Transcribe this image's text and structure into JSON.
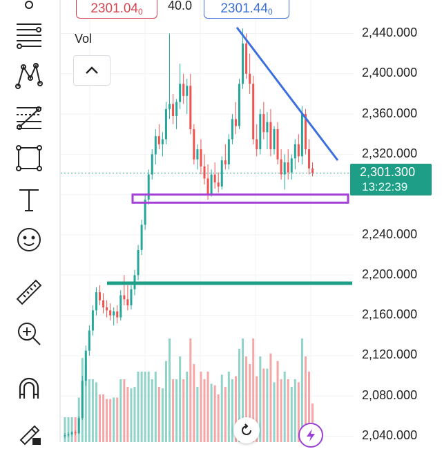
{
  "header": {
    "bid_price": "2301.04",
    "bid_superscript": "0",
    "spread": "40.0",
    "ask_price": "2301.44",
    "ask_superscript": "0"
  },
  "volume_panel": {
    "label": "Vol"
  },
  "toolbar": {
    "tools": [
      "top-partial-tool-icon",
      "trend-lines-icon",
      "pattern-tool-icon",
      "fibonacci-tool-icon",
      "rectangle-tool-icon",
      "text-tool-icon",
      "emoji-tool-icon",
      "ruler-icon",
      "zoom-in-icon",
      "magnet-icon",
      "brush-icon"
    ]
  },
  "price_axis": {
    "ticks": [
      "2,440.000",
      "2,400.000",
      "2,360.000",
      "2,320.000",
      "2,240.000",
      "2,200.000",
      "2,160.000",
      "2,120.000",
      "2,080.000",
      "2,040.000"
    ]
  },
  "current_price": {
    "price": "2,301.300",
    "countdown": "13:22:39"
  },
  "colors": {
    "up": "#26a69a",
    "down": "#ef5350",
    "trend_line": "#3b6fe0",
    "support_line": "#1e9e86",
    "zone": "#a43fd6",
    "price_line": "#1e9e86"
  },
  "chart_data": {
    "type": "candlestick",
    "ylim": [
      2040,
      2460
    ],
    "candles": [
      [
        2040,
        2043,
        2038,
        2041
      ],
      [
        2041,
        2044,
        2039,
        2042
      ],
      [
        2042,
        2045,
        2040,
        2044
      ],
      [
        2044,
        2046,
        2041,
        2043
      ],
      [
        2043,
        2060,
        2042,
        2058
      ],
      [
        2058,
        2100,
        2056,
        2095
      ],
      [
        2095,
        2130,
        2090,
        2125
      ],
      [
        2125,
        2150,
        2120,
        2145
      ],
      [
        2145,
        2170,
        2140,
        2165
      ],
      [
        2165,
        2188,
        2160,
        2183
      ],
      [
        2183,
        2190,
        2170,
        2175
      ],
      [
        2175,
        2182,
        2162,
        2168
      ],
      [
        2168,
        2175,
        2158,
        2165
      ],
      [
        2165,
        2172,
        2155,
        2160
      ],
      [
        2160,
        2168,
        2150,
        2164
      ],
      [
        2164,
        2170,
        2152,
        2158
      ],
      [
        2158,
        2185,
        2155,
        2180
      ],
      [
        2180,
        2200,
        2170,
        2176
      ],
      [
        2176,
        2190,
        2165,
        2170
      ],
      [
        2170,
        2190,
        2166,
        2186
      ],
      [
        2186,
        2205,
        2180,
        2200
      ],
      [
        2200,
        2230,
        2195,
        2225
      ],
      [
        2225,
        2255,
        2220,
        2250
      ],
      [
        2250,
        2280,
        2245,
        2275
      ],
      [
        2275,
        2305,
        2270,
        2300
      ],
      [
        2300,
        2325,
        2295,
        2320
      ],
      [
        2320,
        2345,
        2310,
        2338
      ],
      [
        2338,
        2350,
        2325,
        2330
      ],
      [
        2330,
        2342,
        2318,
        2335
      ],
      [
        2335,
        2372,
        2330,
        2365
      ],
      [
        2365,
        2440,
        2355,
        2370
      ],
      [
        2370,
        2380,
        2350,
        2358
      ],
      [
        2358,
        2375,
        2345,
        2372
      ],
      [
        2372,
        2410,
        2365,
        2390
      ],
      [
        2390,
        2400,
        2370,
        2378
      ],
      [
        2378,
        2395,
        2360,
        2388
      ],
      [
        2388,
        2400,
        2340,
        2345
      ],
      [
        2345,
        2350,
        2310,
        2315
      ],
      [
        2315,
        2330,
        2305,
        2325
      ],
      [
        2325,
        2335,
        2300,
        2308
      ],
      [
        2308,
        2320,
        2290,
        2296
      ],
      [
        2296,
        2310,
        2275,
        2280
      ],
      [
        2280,
        2305,
        2278,
        2300
      ],
      [
        2300,
        2312,
        2286,
        2292
      ],
      [
        2292,
        2302,
        2282,
        2288
      ],
      [
        2288,
        2318,
        2285,
        2314
      ],
      [
        2314,
        2330,
        2305,
        2310
      ],
      [
        2310,
        2340,
        2305,
        2335
      ],
      [
        2335,
        2360,
        2330,
        2355
      ],
      [
        2355,
        2372,
        2340,
        2348
      ],
      [
        2348,
        2395,
        2345,
        2390
      ],
      [
        2390,
        2445,
        2385,
        2430
      ],
      [
        2430,
        2440,
        2395,
        2400
      ],
      [
        2400,
        2420,
        2380,
        2390
      ],
      [
        2390,
        2398,
        2330,
        2335
      ],
      [
        2335,
        2350,
        2318,
        2325
      ],
      [
        2325,
        2365,
        2320,
        2360
      ],
      [
        2360,
        2372,
        2335,
        2342
      ],
      [
        2342,
        2362,
        2325,
        2352
      ],
      [
        2352,
        2365,
        2318,
        2325
      ],
      [
        2325,
        2348,
        2320,
        2345
      ],
      [
        2345,
        2352,
        2310,
        2315
      ],
      [
        2315,
        2325,
        2295,
        2300
      ],
      [
        2300,
        2320,
        2285,
        2312
      ],
      [
        2312,
        2325,
        2295,
        2302
      ],
      [
        2302,
        2320,
        2295,
        2316
      ],
      [
        2316,
        2335,
        2305,
        2330
      ],
      [
        2330,
        2340,
        2312,
        2318
      ],
      [
        2318,
        2368,
        2310,
        2360
      ],
      [
        2360,
        2365,
        2320,
        2325
      ],
      [
        2325,
        2335,
        2300,
        2306
      ],
      [
        2306,
        2312,
        2298,
        2301.3
      ]
    ],
    "annotations": {
      "trend_line": {
        "from": [
          51,
          2446
        ],
        "to": [
          71,
          2314
        ]
      },
      "support_line": {
        "from": [
          9,
          2192
        ],
        "to": [
          71,
          2192
        ]
      },
      "zone": {
        "from_index": 0,
        "to_index": 71,
        "top": 2280,
        "bottom": 2272
      },
      "last_price_line": 2301.3
    }
  }
}
